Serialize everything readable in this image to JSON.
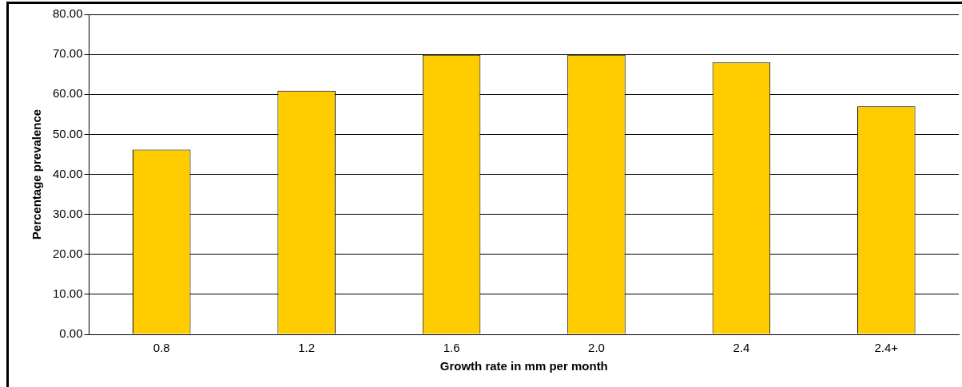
{
  "chart_data": {
    "type": "bar",
    "xlabel": "Growth rate in mm per month",
    "ylabel": "Percentage prevalence",
    "categories": [
      "0.8",
      "1.2",
      "1.6",
      "2.0",
      "2.4",
      "2.4+"
    ],
    "values": [
      46.2,
      60.9,
      69.9,
      69.9,
      68.0,
      57.0
    ],
    "color": "#ffcc00",
    "ylim": [
      0,
      80
    ],
    "yticks": [
      {
        "value": 0,
        "label": "0.00"
      },
      {
        "value": 10,
        "label": "10.00"
      },
      {
        "value": 20,
        "label": "20.00"
      },
      {
        "value": 30,
        "label": "30.00"
      },
      {
        "value": 40,
        "label": "40.00"
      },
      {
        "value": 50,
        "label": "50.00"
      },
      {
        "value": 60,
        "label": "60.00"
      },
      {
        "value": 70,
        "label": "70.00"
      },
      {
        "value": 80,
        "label": "80.00"
      }
    ],
    "grid": "y",
    "legend": false
  }
}
